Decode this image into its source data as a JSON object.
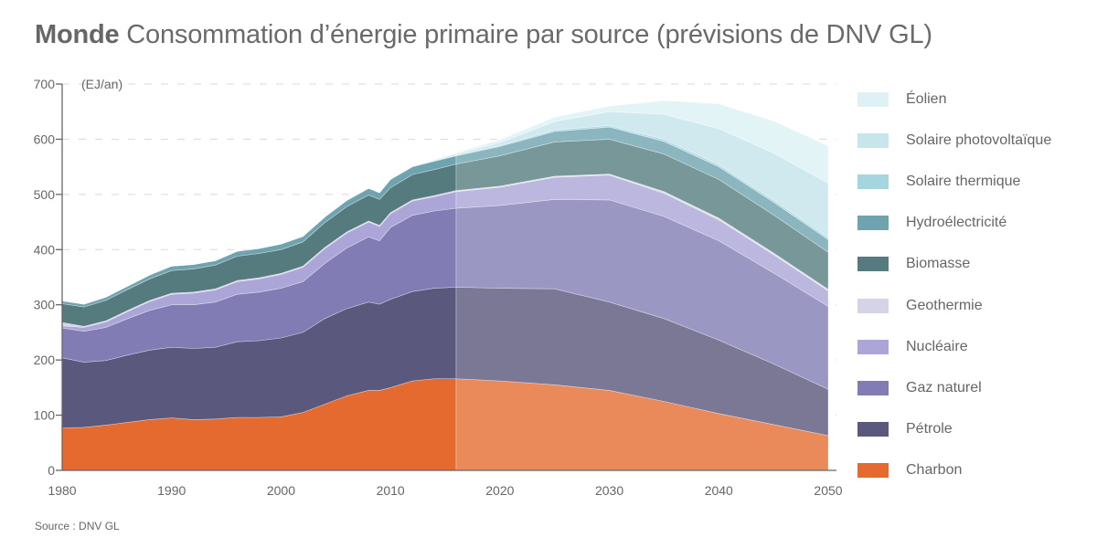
{
  "title": {
    "bold": "Monde",
    "rest": " Consommation d’énergie primaire par source (prévisions de DNV GL)"
  },
  "source": "Source : DNV GL",
  "chart_data": {
    "type": "area",
    "stacked": true,
    "title": "Monde Consommation d’énergie primaire par source (prévisions de DNV GL)",
    "ylabel": "(EJ/an)",
    "xlabel": "",
    "xlim": [
      1980,
      2050
    ],
    "ylim": [
      0,
      700
    ],
    "yticks": [
      0,
      100,
      200,
      300,
      400,
      500,
      600,
      700
    ],
    "xticks": [
      1980,
      1990,
      2000,
      2010,
      2020,
      2030,
      2040,
      2050
    ],
    "grid": "horizontal-dashed",
    "legend_position": "right",
    "forecast_start": 2016,
    "x": [
      1980,
      1982,
      1984,
      1986,
      1988,
      1990,
      1992,
      1994,
      1996,
      1998,
      2000,
      2002,
      2004,
      2006,
      2008,
      2009,
      2010,
      2012,
      2014,
      2016,
      2020,
      2025,
      2030,
      2035,
      2040,
      2045,
      2050
    ],
    "series": [
      {
        "name": "Charbon",
        "color": "#e46a30",
        "forecast_color": "#ea8a5a",
        "values": [
          77,
          78,
          82,
          87,
          92,
          95,
          92,
          93,
          96,
          96,
          97,
          105,
          120,
          135,
          145,
          145,
          150,
          162,
          166,
          166,
          162,
          155,
          145,
          125,
          103,
          83,
          63
        ]
      },
      {
        "name": "Pétrole",
        "color": "#5a587c",
        "forecast_color": "#7b7896",
        "values": [
          127,
          118,
          117,
          122,
          126,
          128,
          129,
          130,
          137,
          139,
          143,
          145,
          155,
          158,
          160,
          156,
          160,
          162,
          164,
          166,
          168,
          174,
          160,
          150,
          133,
          110,
          84
        ]
      },
      {
        "name": "Gaz naturel",
        "color": "#827cb4",
        "forecast_color": "#9b97c3",
        "values": [
          54,
          56,
          60,
          66,
          72,
          77,
          79,
          82,
          86,
          88,
          90,
          92,
          100,
          110,
          118,
          115,
          130,
          138,
          140,
          143,
          150,
          162,
          185,
          185,
          180,
          165,
          150
        ]
      },
      {
        "name": "Nucléaire",
        "color": "#aca6d8",
        "forecast_color": "#bcb7de",
        "values": [
          4,
          7,
          10,
          13,
          16,
          19,
          21,
          22,
          23,
          24,
          25,
          26,
          27,
          27,
          27,
          26,
          25,
          26,
          26,
          30,
          33,
          40,
          45,
          42,
          38,
          33,
          28
        ]
      },
      {
        "name": "Geothermie",
        "color": "#d5d3e8",
        "forecast_color": "#e0dff0",
        "values": [
          6,
          2,
          2,
          2,
          2,
          2,
          2,
          2,
          2,
          2,
          2,
          2,
          2,
          2,
          2,
          2,
          2,
          2,
          2,
          2,
          2,
          2,
          2,
          3,
          3,
          3,
          3
        ]
      },
      {
        "name": "Biomasse",
        "color": "#567b7e",
        "forecast_color": "#789799",
        "values": [
          34,
          35,
          37,
          38,
          39,
          41,
          42,
          43,
          44,
          44,
          43,
          44,
          45,
          46,
          47,
          47,
          45,
          46,
          47,
          48,
          55,
          62,
          63,
          68,
          70,
          69,
          67
        ]
      },
      {
        "name": "Hydroélectricité",
        "color": "#6fa3b0",
        "forecast_color": "#8bb6c0",
        "values": [
          5,
          5,
          6,
          6,
          7,
          8,
          8,
          8,
          9,
          9,
          10,
          10,
          10,
          11,
          12,
          12,
          15,
          14,
          15,
          15,
          17,
          19,
          22,
          23,
          23,
          23,
          23
        ]
      },
      {
        "name": "Solaire thermique",
        "color": "#a5d6e0",
        "forecast_color": "#b3dde6",
        "values": [
          0,
          0,
          0,
          0,
          0,
          0,
          0,
          0,
          0,
          0,
          0,
          0,
          0,
          0,
          0,
          0,
          0,
          0,
          1,
          1,
          2,
          3,
          3,
          4,
          4,
          4,
          4
        ]
      },
      {
        "name": "Solaire photovoltaïque",
        "color": "#c6e6ec",
        "forecast_color": "#cfe9ef",
        "values": [
          0,
          0,
          0,
          0,
          0,
          0,
          0,
          0,
          0,
          0,
          0,
          0,
          0,
          0,
          0,
          0,
          0,
          0,
          1,
          2,
          5,
          15,
          25,
          45,
          65,
          85,
          98
        ]
      },
      {
        "name": "Éolien",
        "color": "#dff1f5",
        "forecast_color": "#e3f4f7",
        "values": [
          0,
          0,
          0,
          0,
          0,
          0,
          0,
          0,
          0,
          0,
          0,
          0,
          0,
          0,
          0,
          0,
          0,
          1,
          1,
          2,
          5,
          8,
          10,
          25,
          45,
          58,
          68
        ]
      }
    ]
  },
  "legend": [
    {
      "label": "Éolien",
      "color": "#dff1f5"
    },
    {
      "label": "Solaire photovoltaïque",
      "color": "#c6e6ec"
    },
    {
      "label": "Solaire thermique",
      "color": "#a5d6e0"
    },
    {
      "label": "Hydroélectricité",
      "color": "#6fa3b0"
    },
    {
      "label": "Biomasse",
      "color": "#567b7e"
    },
    {
      "label": "Geothermie",
      "color": "#d5d3e8"
    },
    {
      "label": "Nucléaire",
      "color": "#aca6d8"
    },
    {
      "label": "Gaz naturel",
      "color": "#827cb4"
    },
    {
      "label": "Pétrole",
      "color": "#5a587c"
    },
    {
      "label": "Charbon",
      "color": "#e46a30"
    }
  ]
}
